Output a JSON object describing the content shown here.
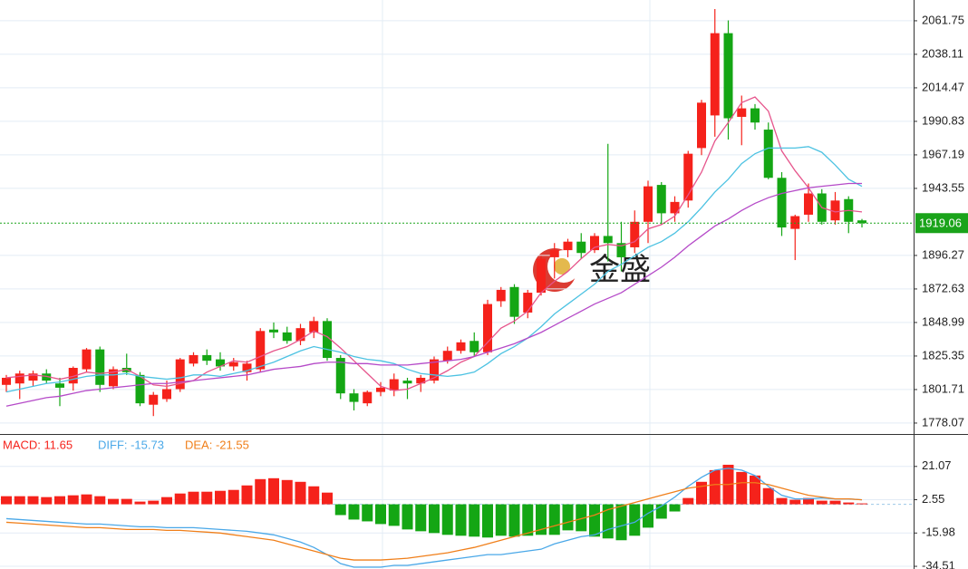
{
  "chart_data": [
    {
      "type": "candlestick",
      "up_color": "#f5221b",
      "down_color": "#14a614",
      "open": [
        1805,
        1806,
        1808,
        1813,
        1806,
        1806,
        1816,
        1830,
        1804,
        1817,
        1812,
        1791,
        1795,
        1802,
        1820,
        1826,
        1823,
        1818,
        1814,
        1816,
        1844,
        1842,
        1836,
        1842,
        1850,
        1824,
        1799,
        1792,
        1800,
        1801,
        1808,
        1806,
        1808,
        1822,
        1829,
        1836,
        1828,
        1864,
        1874,
        1856,
        1870,
        1895,
        1900,
        1906,
        1900,
        1910,
        1905,
        1902,
        1920,
        1946,
        1926,
        1935,
        1972,
        1995,
        2053,
        1994,
        2000,
        1985,
        1951,
        1915,
        1925,
        1940,
        1921,
        1936,
        1921
      ],
      "high": [
        1812,
        1815,
        1815,
        1816,
        1810,
        1818,
        1831,
        1832,
        1818,
        1827,
        1814,
        1800,
        1808,
        1824,
        1828,
        1830,
        1828,
        1824,
        1822,
        1845,
        1849,
        1846,
        1848,
        1853,
        1852,
        1826,
        1802,
        1801,
        1807,
        1813,
        1810,
        1812,
        1825,
        1832,
        1837,
        1842,
        1865,
        1874,
        1876,
        1872,
        1896,
        1905,
        1908,
        1912,
        1912,
        1975,
        1920,
        1928,
        1949,
        1948,
        1938,
        1970,
        2006,
        2070,
        2062,
        2009,
        2003,
        1990,
        1955,
        1925,
        1947,
        1943,
        1941,
        1938,
        1922
      ],
      "low": [
        1800,
        1795,
        1804,
        1806,
        1790,
        1801,
        1814,
        1800,
        1802,
        1812,
        1790,
        1783,
        1793,
        1800,
        1818,
        1819,
        1815,
        1815,
        1808,
        1814,
        1838,
        1834,
        1833,
        1838,
        1822,
        1795,
        1787,
        1790,
        1797,
        1797,
        1795,
        1800,
        1806,
        1820,
        1827,
        1825,
        1826,
        1860,
        1848,
        1852,
        1868,
        1880,
        1895,
        1894,
        1898,
        1892,
        1885,
        1898,
        1905,
        1918,
        1920,
        1930,
        1967,
        1980,
        1978,
        1974,
        1985,
        1950,
        1910,
        1893,
        1920,
        1918,
        1918,
        1912,
        1916
      ],
      "close": [
        1810,
        1813,
        1813,
        1808,
        1803,
        1817,
        1830,
        1805,
        1816,
        1814,
        1792,
        1798,
        1802,
        1823,
        1826,
        1822,
        1818,
        1821,
        1820,
        1843,
        1842,
        1836,
        1845,
        1850,
        1824,
        1799,
        1793,
        1800,
        1803,
        1809,
        1806,
        1810,
        1823,
        1829,
        1835,
        1828,
        1862,
        1872,
        1853,
        1870,
        1894,
        1900,
        1906,
        1898,
        1910,
        1905,
        1895,
        1920,
        1945,
        1926,
        1934,
        1968,
        2004,
        2053,
        1993,
        2000,
        1990,
        1951,
        1916,
        1924,
        1940,
        1920,
        1935,
        1920,
        1919
      ],
      "lines": [
        {
          "color": "#e6558c",
          "values": [
            1810,
            1811,
            1812,
            1811,
            1809,
            1811,
            1814,
            1813,
            1814,
            1816,
            1811,
            1805,
            1804,
            1806,
            1808,
            1814,
            1818,
            1822,
            1821,
            1825,
            1829,
            1832,
            1837,
            1843,
            1839,
            1831,
            1822,
            1813,
            1804,
            1801,
            1802,
            1806,
            1810,
            1815,
            1821,
            1825,
            1835,
            1845,
            1850,
            1857,
            1870,
            1878,
            1885,
            1894,
            1902,
            1904,
            1903,
            1906,
            1915,
            1918,
            1924,
            1939,
            1955,
            1977,
            1990,
            2004,
            2008,
            1998,
            1970,
            1956,
            1944,
            1930,
            1927,
            1928,
            1927
          ]
        },
        {
          "color": "#4cc2e2",
          "values": [
            1800,
            1802,
            1804,
            1806,
            1807,
            1809,
            1811,
            1812,
            1812,
            1813,
            1811,
            1810,
            1809,
            1810,
            1812,
            1812,
            1811,
            1813,
            1815,
            1818,
            1821,
            1825,
            1829,
            1832,
            1830,
            1828,
            1825,
            1823,
            1822,
            1820,
            1816,
            1813,
            1812,
            1811,
            1812,
            1814,
            1820,
            1827,
            1832,
            1838,
            1846,
            1855,
            1862,
            1869,
            1876,
            1885,
            1890,
            1896,
            1902,
            1906,
            1912,
            1920,
            1930,
            1941,
            1950,
            1961,
            1968,
            1972,
            1972,
            1972,
            1973,
            1969,
            1960,
            1950,
            1945
          ]
        },
        {
          "color": "#b54ac8",
          "values": [
            1790,
            1792,
            1794,
            1796,
            1797,
            1799,
            1801,
            1802,
            1803,
            1804,
            1805,
            1806,
            1806,
            1807,
            1808,
            1809,
            1810,
            1811,
            1812,
            1814,
            1816,
            1817,
            1818,
            1820,
            1821,
            1821,
            1820,
            1820,
            1819,
            1819,
            1819,
            1820,
            1821,
            1822,
            1823,
            1825,
            1828,
            1831,
            1834,
            1838,
            1842,
            1847,
            1852,
            1857,
            1862,
            1866,
            1870,
            1876,
            1882,
            1888,
            1895,
            1903,
            1910,
            1917,
            1922,
            1928,
            1933,
            1937,
            1940,
            1942,
            1944,
            1945,
            1946,
            1947,
            1947
          ]
        }
      ],
      "last_price": {
        "value": 1919.06,
        "color": "#1aa31a"
      },
      "watermark": "金盛",
      "ylim": [
        1771.0,
        2076.4
      ],
      "yticks": [
        2061.75,
        2038.11,
        2014.47,
        1990.83,
        1967.19,
        1943.55,
        1896.27,
        1872.63,
        1848.99,
        1825.35,
        1801.71,
        1778.07
      ],
      "grid": true
    },
    {
      "type": "macd",
      "header": [
        {
          "text": "MACD: 11.65",
          "color": "#f5221b"
        },
        {
          "text": "DIFF: -15.73",
          "color": "#4aa8e8"
        },
        {
          "text": "DEA: -21.55",
          "color": "#f07f1a"
        }
      ],
      "up_color": "#f5221b",
      "down_color": "#14a614",
      "histogram": [
        4.5,
        4.5,
        4.5,
        4,
        4.5,
        5,
        5.5,
        4.5,
        3,
        3,
        1.5,
        2,
        4,
        6,
        7,
        7,
        7.5,
        8,
        10.5,
        14,
        14.5,
        13.5,
        12.5,
        10,
        6.5,
        -6,
        -8.5,
        -9.5,
        -11,
        -12,
        -14,
        -15,
        -16,
        -17,
        -17.5,
        -18,
        -18.5,
        -17.5,
        -18,
        -17.5,
        -17,
        -17,
        -14.5,
        -15,
        -18,
        -19,
        -20,
        -17.5,
        -13,
        -8,
        -4,
        3.5,
        12.5,
        19,
        22,
        18,
        16,
        9,
        3.5,
        2.5,
        3.5,
        2,
        2,
        1,
        0.5
      ],
      "series": [
        {
          "color": "#4aa8e8",
          "values": [
            -8,
            -8.5,
            -9,
            -9.5,
            -10,
            -10.5,
            -11,
            -11,
            -11.5,
            -12,
            -12.5,
            -12.5,
            -13,
            -13,
            -13,
            -13.5,
            -14,
            -14.5,
            -15,
            -16,
            -17,
            -19,
            -21,
            -24,
            -28,
            -33,
            -35,
            -35,
            -35,
            -34,
            -34,
            -33,
            -32,
            -31,
            -30,
            -29,
            -28,
            -28,
            -27,
            -26,
            -25,
            -22,
            -20,
            -18,
            -17,
            -14,
            -12,
            -10,
            -5,
            -1,
            4,
            10,
            15,
            19,
            20,
            19,
            16,
            10,
            5,
            3,
            3,
            3.5,
            3,
            3,
            2.5
          ]
        },
        {
          "color": "#f07f1a",
          "values": [
            -10,
            -10.5,
            -11,
            -11.5,
            -12,
            -12.5,
            -13,
            -13,
            -13.5,
            -14,
            -14,
            -14,
            -14.5,
            -14.5,
            -15,
            -15.5,
            -16,
            -17,
            -18,
            -19,
            -20,
            -22,
            -24,
            -26,
            -28,
            -30,
            -31,
            -31,
            -31,
            -30.5,
            -30,
            -29,
            -28,
            -27,
            -25.5,
            -24,
            -22,
            -20,
            -18,
            -16,
            -14,
            -12,
            -10,
            -8,
            -6,
            -3,
            -1,
            1,
            3,
            5,
            7,
            9,
            10,
            11,
            11,
            12,
            12,
            11,
            9,
            7,
            5,
            4,
            3,
            3,
            2.5
          ]
        }
      ],
      "ylim": [
        -36.0,
        38.1
      ],
      "yticks": [
        21.07,
        2.55,
        -15.98,
        -34.51
      ],
      "grid": true
    }
  ]
}
